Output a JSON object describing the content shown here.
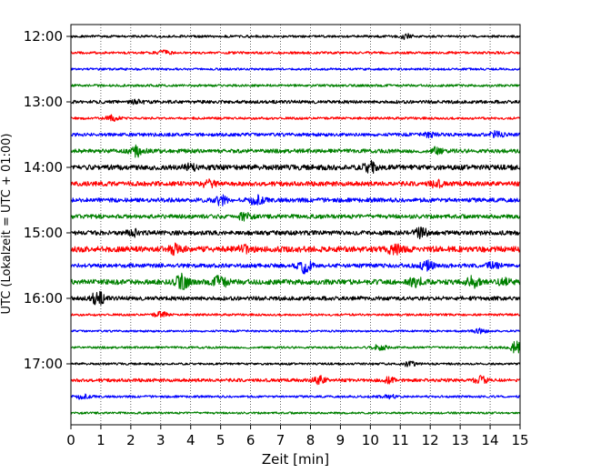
{
  "chart_data": {
    "type": "line",
    "title": "",
    "xlabel": "Zeit  [min]",
    "ylabel": "UTC (Lokalzeit = UTC + 01:00)",
    "xlim": [
      0,
      15
    ],
    "x_ticks": [
      "0",
      "1",
      "2",
      "3",
      "4",
      "5",
      "6",
      "7",
      "8",
      "9",
      "10",
      "11",
      "12",
      "13",
      "14",
      "15"
    ],
    "y_ticks": [
      "12:00",
      "13:00",
      "14:00",
      "15:00",
      "16:00",
      "17:00"
    ],
    "grid": "vertical dotted",
    "colors": [
      "#000000",
      "#ff0000",
      "#0000ff",
      "#008000"
    ],
    "traces": [
      {
        "start": "12:00",
        "color": "#000000",
        "amp": 1.3,
        "events": [
          {
            "t": 11.2,
            "a": 2.5
          }
        ]
      },
      {
        "start": "12:15",
        "color": "#ff0000",
        "amp": 1.3,
        "events": [
          {
            "t": 3.1,
            "a": 2.0
          }
        ]
      },
      {
        "start": "12:30",
        "color": "#0000ff",
        "amp": 1.2,
        "events": []
      },
      {
        "start": "12:45",
        "color": "#008000",
        "amp": 1.3,
        "events": []
      },
      {
        "start": "13:00",
        "color": "#000000",
        "amp": 1.8,
        "events": [
          {
            "t": 2.2,
            "a": 2.0
          }
        ]
      },
      {
        "start": "13:15",
        "color": "#ff0000",
        "amp": 1.3,
        "events": [
          {
            "t": 1.4,
            "a": 3.0
          }
        ]
      },
      {
        "start": "13:30",
        "color": "#0000ff",
        "amp": 1.8,
        "events": [
          {
            "t": 14.2,
            "a": 3.0
          },
          {
            "t": 12.0,
            "a": 2.2
          }
        ]
      },
      {
        "start": "13:45",
        "color": "#008000",
        "amp": 2.2,
        "events": [
          {
            "t": 2.2,
            "a": 5.0
          },
          {
            "t": 12.2,
            "a": 3.0
          }
        ]
      },
      {
        "start": "14:00",
        "color": "#000000",
        "amp": 2.8,
        "events": [
          {
            "t": 10.0,
            "a": 6.0
          },
          {
            "t": 4.0,
            "a": 2.5
          }
        ]
      },
      {
        "start": "14:15",
        "color": "#ff0000",
        "amp": 2.5,
        "events": [
          {
            "t": 4.6,
            "a": 3.5
          },
          {
            "t": 12.2,
            "a": 3.0
          }
        ]
      },
      {
        "start": "14:30",
        "color": "#0000ff",
        "amp": 2.3,
        "events": [
          {
            "t": 5.0,
            "a": 5.0
          },
          {
            "t": 6.2,
            "a": 5.0
          }
        ]
      },
      {
        "start": "14:45",
        "color": "#008000",
        "amp": 2.2,
        "events": [
          {
            "t": 5.8,
            "a": 3.0
          }
        ]
      },
      {
        "start": "15:00",
        "color": "#000000",
        "amp": 2.4,
        "events": [
          {
            "t": 11.7,
            "a": 5.0
          },
          {
            "t": 2.1,
            "a": 3.0
          }
        ]
      },
      {
        "start": "15:15",
        "color": "#ff0000",
        "amp": 3.2,
        "events": [
          {
            "t": 3.5,
            "a": 5.0
          },
          {
            "t": 10.8,
            "a": 4.0
          },
          {
            "t": 5.8,
            "a": 3.0
          }
        ]
      },
      {
        "start": "15:30",
        "color": "#0000ff",
        "amp": 2.2,
        "events": [
          {
            "t": 7.8,
            "a": 7.0
          },
          {
            "t": 11.9,
            "a": 4.5
          },
          {
            "t": 14.1,
            "a": 3.0
          }
        ]
      },
      {
        "start": "15:45",
        "color": "#008000",
        "amp": 2.8,
        "events": [
          {
            "t": 3.7,
            "a": 7.0
          },
          {
            "t": 5.0,
            "a": 6.0
          },
          {
            "t": 11.5,
            "a": 5.0
          },
          {
            "t": 13.4,
            "a": 5.0
          },
          {
            "t": 14.5,
            "a": 3.0
          }
        ]
      },
      {
        "start": "16:00",
        "color": "#000000",
        "amp": 2.2,
        "events": [
          {
            "t": 0.9,
            "a": 7.0
          }
        ]
      },
      {
        "start": "16:15",
        "color": "#ff0000",
        "amp": 1.2,
        "events": [
          {
            "t": 3.0,
            "a": 3.0
          }
        ]
      },
      {
        "start": "16:30",
        "color": "#0000ff",
        "amp": 1.1,
        "events": [
          {
            "t": 13.7,
            "a": 3.0
          }
        ]
      },
      {
        "start": "16:45",
        "color": "#008000",
        "amp": 1.2,
        "events": [
          {
            "t": 10.3,
            "a": 3.5
          },
          {
            "t": 14.9,
            "a": 7.0
          }
        ]
      },
      {
        "start": "17:00",
        "color": "#000000",
        "amp": 1.2,
        "events": [
          {
            "t": 11.3,
            "a": 2.5
          }
        ]
      },
      {
        "start": "17:15",
        "color": "#ff0000",
        "amp": 1.8,
        "events": [
          {
            "t": 8.3,
            "a": 4.0
          },
          {
            "t": 10.6,
            "a": 2.5
          },
          {
            "t": 13.7,
            "a": 3.5
          }
        ]
      },
      {
        "start": "17:30",
        "color": "#0000ff",
        "amp": 1.2,
        "events": [
          {
            "t": 0.4,
            "a": 2.5
          },
          {
            "t": 10.6,
            "a": 2.5
          }
        ]
      },
      {
        "start": "17:45",
        "color": "#008000",
        "amp": 1.1,
        "events": []
      }
    ]
  }
}
